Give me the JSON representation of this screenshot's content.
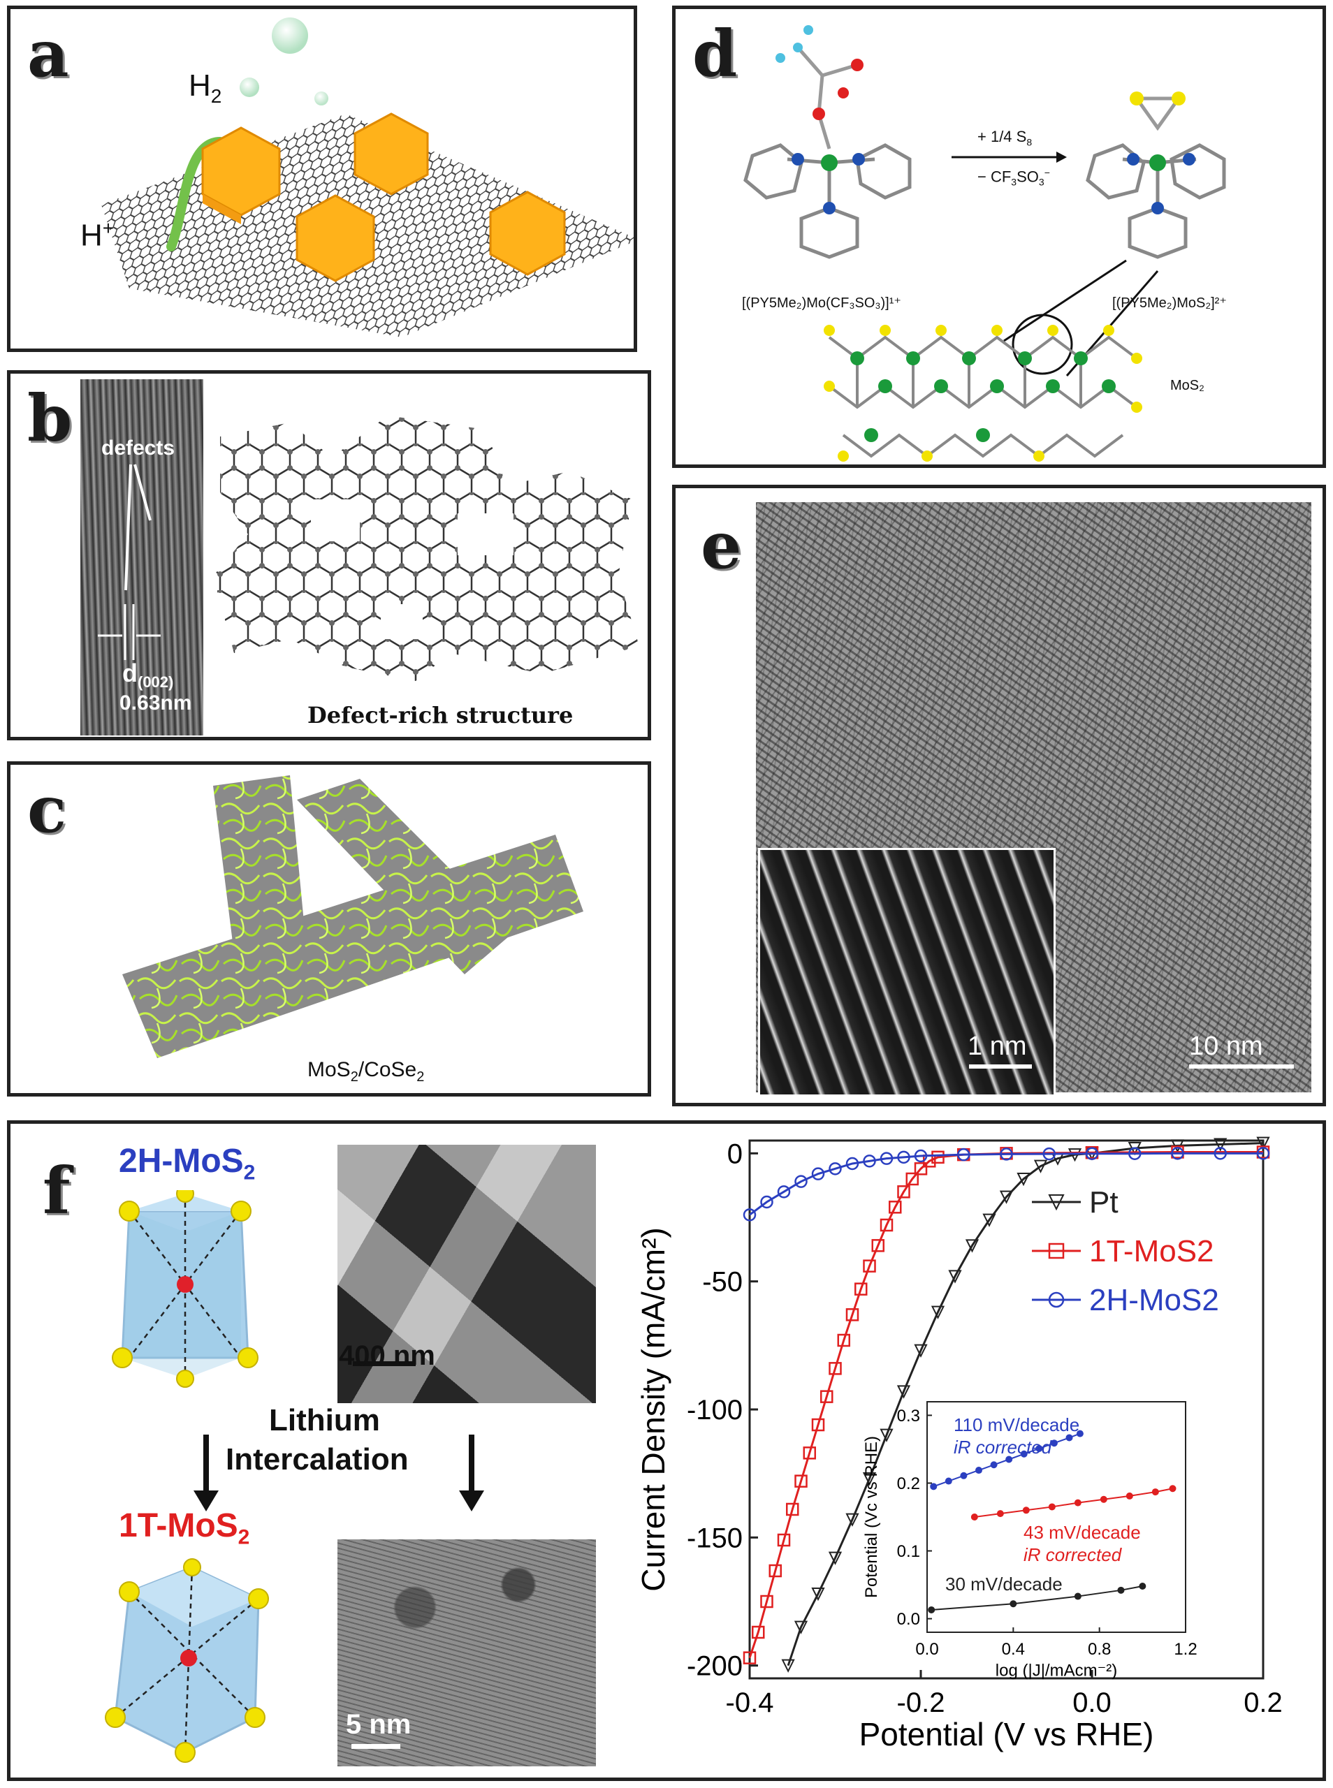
{
  "panels": {
    "a": {
      "label": "a",
      "h2": "H",
      "h2_sub": "2",
      "hplus": "H",
      "hplus_sup": "+"
    },
    "b": {
      "label": "b",
      "defects": "defects",
      "d_label": "d",
      "d_sub": "(002)",
      "spacing": "0.63nm",
      "caption": "Defect-rich structure"
    },
    "c": {
      "label": "c",
      "caption_main": "MoS",
      "caption_sub": "2",
      "caption_rest": "/CoSe",
      "caption_sub2": "2"
    },
    "d": {
      "label": "d",
      "reagent_top": "+ 1/4 S",
      "reagent_top_sub": "8",
      "reagent_bottom": "− CF",
      "reagent_bottom_sub": "3",
      "reagent_bottom_rest": "SO",
      "reagent_bottom_sub2": "3",
      "reagent_bottom_sup": "−",
      "left_formula": "[(PY5Me₂)Mo(CF₃SO₃)]¹⁺",
      "right_formula": "[(PY5Me₂)MoS₂]²⁺",
      "mos2": "MoS₂"
    },
    "e": {
      "label": "e",
      "scale_inset": "1 nm",
      "scale_main": "10 nm"
    },
    "f": {
      "label": "f",
      "title_2h": "2H-MoS",
      "title_2h_sub": "2",
      "title_1t": "1T-MoS",
      "title_1t_sub": "2",
      "scale_sem": "400 nm",
      "scale_tem": "5 nm",
      "arrow_text_1": "Lithium",
      "arrow_text_2": "Intercalation"
    }
  },
  "colors": {
    "pt": "#222222",
    "t1": "#e02020",
    "h2": "#2b3fc0",
    "sulfur": "#f2e200",
    "mo_red": "#e0202a",
    "cluster": "#ffb21a"
  },
  "chart_data": [
    {
      "type": "line",
      "xlabel": "Potential (V vs RHE)",
      "ylabel": "Current Density (mA/cm²)",
      "xlim": [
        -0.4,
        0.2
      ],
      "ylim": [
        -205,
        5
      ],
      "xticks": [
        "-0.4",
        "-0.2",
        "0.0",
        "0.2"
      ],
      "yticks": [
        "0",
        "-50",
        "-100",
        "-150",
        "-200"
      ],
      "legend_position": "top-right",
      "series": [
        {
          "name": "Pt",
          "marker": "triangle-down",
          "color": "#222222",
          "x": [
            -0.355,
            -0.34,
            -0.32,
            -0.3,
            -0.28,
            -0.26,
            -0.24,
            -0.22,
            -0.2,
            -0.18,
            -0.16,
            -0.14,
            -0.12,
            -0.1,
            -0.08,
            -0.06,
            -0.04,
            -0.02,
            0.0,
            0.05,
            0.1,
            0.15,
            0.2
          ],
          "y": [
            -200,
            -185,
            -172,
            -158,
            -143,
            -127,
            -110,
            -93,
            -77,
            -62,
            -48,
            -36,
            -26,
            -17,
            -10,
            -5,
            -2,
            -0.5,
            0,
            2,
            3,
            3.5,
            4
          ]
        },
        {
          "name": "1T-MoS2",
          "marker": "square",
          "color": "#e02020",
          "x": [
            -0.4,
            -0.39,
            -0.38,
            -0.37,
            -0.36,
            -0.35,
            -0.34,
            -0.33,
            -0.32,
            -0.31,
            -0.3,
            -0.29,
            -0.28,
            -0.27,
            -0.26,
            -0.25,
            -0.24,
            -0.23,
            -0.22,
            -0.21,
            -0.2,
            -0.19,
            -0.18,
            -0.15,
            -0.1,
            0.0,
            0.1,
            0.2
          ],
          "y": [
            -197,
            -187,
            -175,
            -163,
            -151,
            -139,
            -128,
            -117,
            -106,
            -95,
            -84,
            -73,
            -63,
            -53,
            -44,
            -36,
            -28,
            -21,
            -15,
            -10,
            -6,
            -3,
            -1.5,
            -0.5,
            0,
            0.3,
            0.5,
            0.5
          ]
        },
        {
          "name": "2H-MoS2",
          "marker": "circle",
          "color": "#2b3fc0",
          "x": [
            -0.4,
            -0.38,
            -0.36,
            -0.34,
            -0.32,
            -0.3,
            -0.28,
            -0.26,
            -0.24,
            -0.22,
            -0.2,
            -0.15,
            -0.1,
            -0.05,
            0.0,
            0.05,
            0.1,
            0.15,
            0.2
          ],
          "y": [
            -24,
            -19,
            -15,
            -11,
            -8,
            -6,
            -4,
            -3,
            -2,
            -1.5,
            -1,
            -0.5,
            -0.3,
            -0.2,
            -0.1,
            -0.1,
            0,
            0,
            0
          ]
        }
      ]
    },
    {
      "type": "line",
      "xlabel": "log (|J|/mAcm⁻²)",
      "ylabel": "Potential (Vc vs RHE)",
      "xlim": [
        0,
        1.2
      ],
      "ylim": [
        -0.02,
        0.32
      ],
      "xticks": [
        "0.0",
        "0.4",
        "0.8",
        "1.2"
      ],
      "yticks": [
        "0.0",
        "0.1",
        "0.2",
        "0.3"
      ],
      "annotations": [
        "110 mV/decade",
        "iR corrected",
        "43 mV/decade",
        "iR corrected",
        "30 mV/decade"
      ],
      "series": [
        {
          "color": "#2b3fc0",
          "x": [
            0.03,
            0.1,
            0.17,
            0.24,
            0.31,
            0.38,
            0.45,
            0.52,
            0.59,
            0.66,
            0.71
          ],
          "y": [
            0.195,
            0.203,
            0.211,
            0.219,
            0.227,
            0.235,
            0.243,
            0.251,
            0.259,
            0.267,
            0.273
          ]
        },
        {
          "color": "#e02020",
          "x": [
            0.22,
            0.34,
            0.46,
            0.58,
            0.7,
            0.82,
            0.94,
            1.06,
            1.14
          ],
          "y": [
            0.15,
            0.155,
            0.16,
            0.165,
            0.171,
            0.176,
            0.181,
            0.187,
            0.192
          ]
        },
        {
          "color": "#222222",
          "x": [
            0.02,
            0.4,
            0.7,
            0.9,
            1.0
          ],
          "y": [
            0.013,
            0.022,
            0.033,
            0.042,
            0.048
          ]
        }
      ]
    }
  ]
}
